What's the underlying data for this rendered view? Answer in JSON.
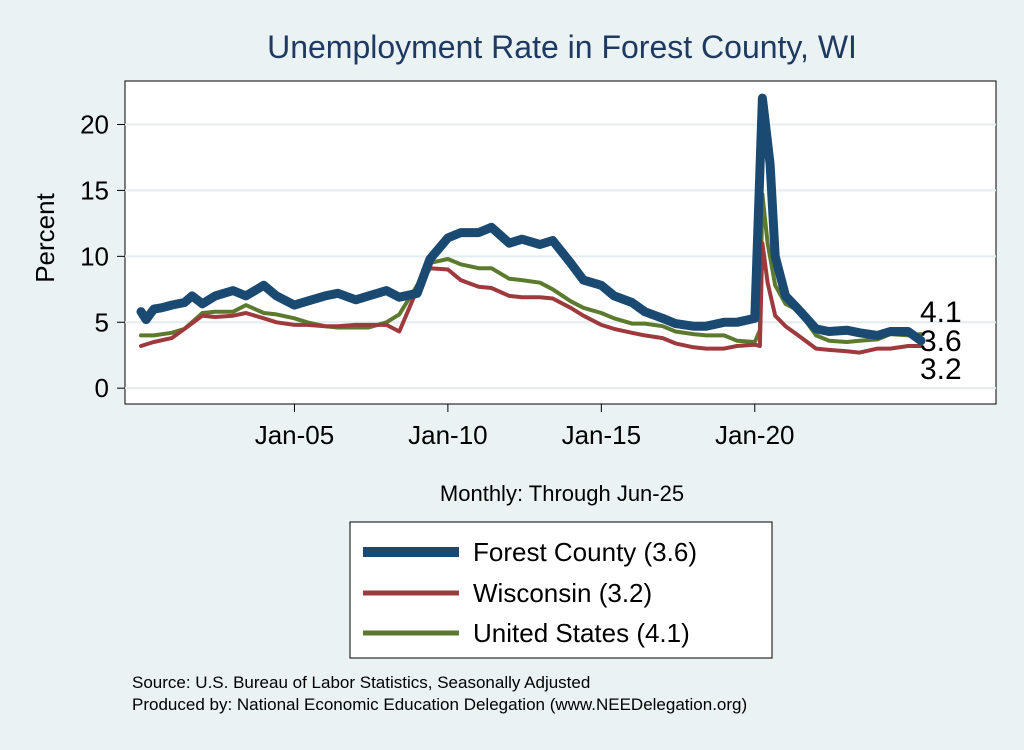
{
  "chart_data": {
    "type": "line",
    "title": "Unemployment Rate in Forest  County, WI",
    "ylabel": "Percent",
    "xlabel": "Monthly: Through Jun-25",
    "x_range": [
      "2000-01",
      "2025-06"
    ],
    "x_ticks": [
      {
        "label": "Jan-05",
        "date": "2005-01"
      },
      {
        "label": "Jan-10",
        "date": "2010-01"
      },
      {
        "label": "Jan-15",
        "date": "2015-01"
      },
      {
        "label": "Jan-20",
        "date": "2020-01"
      }
    ],
    "y_ticks": [
      0,
      5,
      10,
      15,
      20
    ],
    "ylim": [
      -1.2,
      23.3
    ],
    "grid": true,
    "legend_position": "bottom",
    "end_labels": [
      "4.1",
      "3.6",
      "3.2"
    ],
    "series": [
      {
        "name": "Forest  County",
        "legend_label": "Forest  County (3.6)",
        "color": "#1a4a72",
        "points": [
          [
            "2000-01",
            5.8
          ],
          [
            "2000-03",
            5.2
          ],
          [
            "2000-06",
            6.0
          ],
          [
            "2000-09",
            6.1
          ],
          [
            "2001-01",
            6.3
          ],
          [
            "2001-06",
            6.5
          ],
          [
            "2001-09",
            7.0
          ],
          [
            "2002-01",
            6.4
          ],
          [
            "2002-06",
            7.0
          ],
          [
            "2003-01",
            7.4
          ],
          [
            "2003-06",
            7.0
          ],
          [
            "2004-01",
            7.8
          ],
          [
            "2004-06",
            7.0
          ],
          [
            "2005-01",
            6.3
          ],
          [
            "2005-06",
            6.6
          ],
          [
            "2006-01",
            7.0
          ],
          [
            "2006-06",
            7.2
          ],
          [
            "2007-01",
            6.7
          ],
          [
            "2007-06",
            7.0
          ],
          [
            "2008-01",
            7.4
          ],
          [
            "2008-06",
            6.9
          ],
          [
            "2009-01",
            7.2
          ],
          [
            "2009-06",
            9.8
          ],
          [
            "2010-01",
            11.4
          ],
          [
            "2010-06",
            11.8
          ],
          [
            "2011-01",
            11.8
          ],
          [
            "2011-06",
            12.2
          ],
          [
            "2012-01",
            11.0
          ],
          [
            "2012-06",
            11.3
          ],
          [
            "2013-01",
            10.9
          ],
          [
            "2013-06",
            11.2
          ],
          [
            "2014-01",
            9.5
          ],
          [
            "2014-06",
            8.2
          ],
          [
            "2015-01",
            7.8
          ],
          [
            "2015-06",
            7.0
          ],
          [
            "2016-01",
            6.5
          ],
          [
            "2016-06",
            5.8
          ],
          [
            "2017-01",
            5.3
          ],
          [
            "2017-06",
            4.9
          ],
          [
            "2018-01",
            4.7
          ],
          [
            "2018-06",
            4.7
          ],
          [
            "2019-01",
            5.0
          ],
          [
            "2019-06",
            5.0
          ],
          [
            "2020-01",
            5.3
          ],
          [
            "2020-04",
            22.0
          ],
          [
            "2020-07",
            17.0
          ],
          [
            "2020-09",
            10.0
          ],
          [
            "2021-01",
            7.0
          ],
          [
            "2021-06",
            6.0
          ],
          [
            "2022-01",
            4.5
          ],
          [
            "2022-06",
            4.3
          ],
          [
            "2023-01",
            4.4
          ],
          [
            "2023-06",
            4.2
          ],
          [
            "2024-01",
            4.0
          ],
          [
            "2024-06",
            4.3
          ],
          [
            "2025-01",
            4.3
          ],
          [
            "2025-06",
            3.6
          ]
        ]
      },
      {
        "name": "Wisconsin",
        "legend_label": "Wisconsin (3.2)",
        "color": "#9e3a3e",
        "points": [
          [
            "2000-01",
            3.2
          ],
          [
            "2000-06",
            3.5
          ],
          [
            "2001-01",
            3.8
          ],
          [
            "2001-06",
            4.5
          ],
          [
            "2002-01",
            5.5
          ],
          [
            "2002-06",
            5.4
          ],
          [
            "2003-01",
            5.5
          ],
          [
            "2003-06",
            5.7
          ],
          [
            "2004-01",
            5.3
          ],
          [
            "2004-06",
            5.0
          ],
          [
            "2005-01",
            4.8
          ],
          [
            "2005-06",
            4.8
          ],
          [
            "2006-01",
            4.7
          ],
          [
            "2006-06",
            4.7
          ],
          [
            "2007-01",
            4.8
          ],
          [
            "2007-06",
            4.8
          ],
          [
            "2008-01",
            4.8
          ],
          [
            "2008-06",
            4.3
          ],
          [
            "2009-01",
            7.5
          ],
          [
            "2009-06",
            9.1
          ],
          [
            "2010-01",
            9.0
          ],
          [
            "2010-06",
            8.2
          ],
          [
            "2011-01",
            7.7
          ],
          [
            "2011-06",
            7.6
          ],
          [
            "2012-01",
            7.0
          ],
          [
            "2012-06",
            6.9
          ],
          [
            "2013-01",
            6.9
          ],
          [
            "2013-06",
            6.8
          ],
          [
            "2014-01",
            6.1
          ],
          [
            "2014-06",
            5.5
          ],
          [
            "2015-01",
            4.8
          ],
          [
            "2015-06",
            4.5
          ],
          [
            "2016-01",
            4.2
          ],
          [
            "2016-06",
            4.0
          ],
          [
            "2017-01",
            3.8
          ],
          [
            "2017-06",
            3.4
          ],
          [
            "2018-01",
            3.1
          ],
          [
            "2018-06",
            3.0
          ],
          [
            "2019-01",
            3.0
          ],
          [
            "2019-06",
            3.2
          ],
          [
            "2020-01",
            3.3
          ],
          [
            "2020-03",
            3.2
          ],
          [
            "2020-04",
            11.0
          ],
          [
            "2020-06",
            8.0
          ],
          [
            "2020-09",
            5.5
          ],
          [
            "2021-01",
            4.7
          ],
          [
            "2021-06",
            4.0
          ],
          [
            "2022-01",
            3.0
          ],
          [
            "2022-06",
            2.9
          ],
          [
            "2023-01",
            2.8
          ],
          [
            "2023-06",
            2.7
          ],
          [
            "2024-01",
            3.0
          ],
          [
            "2024-06",
            3.0
          ],
          [
            "2025-01",
            3.2
          ],
          [
            "2025-06",
            3.2
          ]
        ]
      },
      {
        "name": "United States",
        "legend_label": "United States (4.1)",
        "color": "#5c7a2e",
        "points": [
          [
            "2000-01",
            4.0
          ],
          [
            "2000-06",
            4.0
          ],
          [
            "2001-01",
            4.2
          ],
          [
            "2001-06",
            4.5
          ],
          [
            "2002-01",
            5.7
          ],
          [
            "2002-06",
            5.8
          ],
          [
            "2003-01",
            5.8
          ],
          [
            "2003-06",
            6.3
          ],
          [
            "2004-01",
            5.7
          ],
          [
            "2004-06",
            5.6
          ],
          [
            "2005-01",
            5.3
          ],
          [
            "2005-06",
            5.0
          ],
          [
            "2006-01",
            4.7
          ],
          [
            "2006-06",
            4.6
          ],
          [
            "2007-01",
            4.6
          ],
          [
            "2007-06",
            4.6
          ],
          [
            "2008-01",
            5.0
          ],
          [
            "2008-06",
            5.6
          ],
          [
            "2009-01",
            7.8
          ],
          [
            "2009-06",
            9.5
          ],
          [
            "2010-01",
            9.8
          ],
          [
            "2010-06",
            9.4
          ],
          [
            "2011-01",
            9.1
          ],
          [
            "2011-06",
            9.1
          ],
          [
            "2012-01",
            8.3
          ],
          [
            "2012-06",
            8.2
          ],
          [
            "2013-01",
            8.0
          ],
          [
            "2013-06",
            7.5
          ],
          [
            "2014-01",
            6.6
          ],
          [
            "2014-06",
            6.1
          ],
          [
            "2015-01",
            5.7
          ],
          [
            "2015-06",
            5.3
          ],
          [
            "2016-01",
            4.9
          ],
          [
            "2016-06",
            4.9
          ],
          [
            "2017-01",
            4.7
          ],
          [
            "2017-06",
            4.3
          ],
          [
            "2018-01",
            4.1
          ],
          [
            "2018-06",
            4.0
          ],
          [
            "2019-01",
            4.0
          ],
          [
            "2019-06",
            3.6
          ],
          [
            "2020-01",
            3.5
          ],
          [
            "2020-03",
            4.4
          ],
          [
            "2020-04",
            14.7
          ],
          [
            "2020-06",
            11.0
          ],
          [
            "2020-09",
            7.8
          ],
          [
            "2021-01",
            6.4
          ],
          [
            "2021-06",
            5.9
          ],
          [
            "2022-01",
            4.0
          ],
          [
            "2022-06",
            3.6
          ],
          [
            "2023-01",
            3.5
          ],
          [
            "2023-06",
            3.6
          ],
          [
            "2024-01",
            3.7
          ],
          [
            "2024-06",
            4.1
          ],
          [
            "2025-01",
            4.0
          ],
          [
            "2025-06",
            4.1
          ]
        ]
      }
    ]
  },
  "footer": {
    "source": "Source: U.S. Bureau of Labor Statistics, Seasonally Adjusted",
    "produced_by": "Produced by: National Economic Education Delegation (www.NEEDelegation.org)"
  },
  "colors": {
    "background": "#eaf2f3",
    "plot_background": "#ffffff",
    "title": "#1e3a60"
  }
}
